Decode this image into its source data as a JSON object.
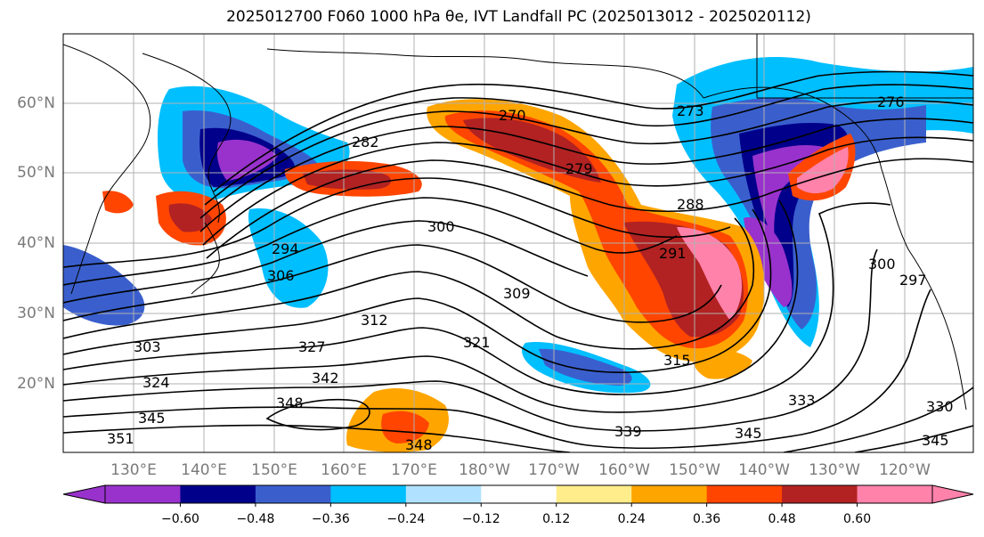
{
  "title": "2025012700 F060 1000 hPa θe, IVT Landfall PC (2025013012 - 2025020112)",
  "lat_labels": [
    "60°N",
    "50°N",
    "40°N",
    "30°N",
    "20°N"
  ],
  "lon_labels": [
    "130°E",
    "140°E",
    "150°E",
    "160°E",
    "170°E",
    "180°W",
    "170°W",
    "160°W",
    "150°W",
    "140°W",
    "130°W",
    "120°W"
  ],
  "contour_labels": [
    "270",
    "273",
    "276",
    "279",
    "282",
    "288",
    "291",
    "294",
    "297",
    "300",
    "303",
    "306",
    "309",
    "312",
    "315",
    "321",
    "324",
    "327",
    "330",
    "333",
    "339",
    "342",
    "345",
    "348",
    "351"
  ],
  "colorbar": {
    "ticks": [
      "−0.60",
      "−0.48",
      "−0.36",
      "−0.24",
      "−0.12",
      "0.12",
      "0.24",
      "0.36",
      "0.48",
      "0.60"
    ],
    "colors": [
      "#9932cc",
      "#00008b",
      "#3a5fcd",
      "#00bfff",
      "#b0e2ff",
      "#ffffff",
      "#ffec8b",
      "#ffa500",
      "#ff4500",
      "#b22222",
      "#ff82ab"
    ]
  }
}
